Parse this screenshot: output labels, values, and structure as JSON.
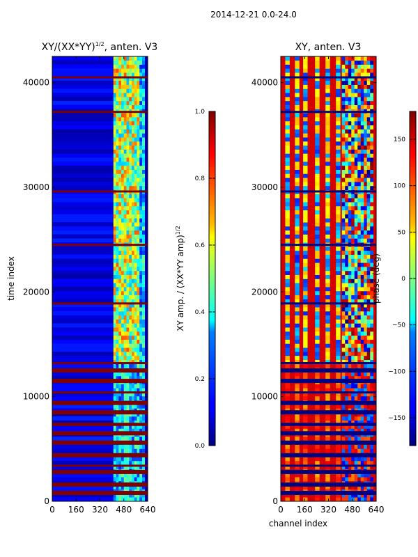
{
  "figure": {
    "suptitle": "2014-12-21 0.0-24.0",
    "xlabel": "channel index"
  },
  "chart_data": [
    {
      "type": "heatmap",
      "title_main": "XY/(XX*YY)",
      "title_sup": "1/2",
      "title_tail": ", anten. V3",
      "xlabel": "",
      "ylabel": "time index",
      "xlim": [
        0,
        640
      ],
      "ylim": [
        0,
        42500
      ],
      "xticks": [
        0,
        160,
        320,
        480,
        640
      ],
      "yticks": [
        0,
        10000,
        20000,
        30000,
        40000
      ],
      "colormap": "jet",
      "colorbar": {
        "label": "XY amp. / (XX*YY amp)",
        "label_sup": "1/2",
        "min": 0.0,
        "max": 1.0,
        "ticks": [
          0.0,
          0.2,
          0.4,
          0.6,
          0.8,
          1.0
        ],
        "tick_labels": [
          "0.0",
          "0.2",
          "0.4",
          "0.6",
          "0.8",
          "1.0"
        ]
      },
      "features": {
        "background_value": 0.05,
        "active_channel_range": [
          410,
          620
        ],
        "active_value_range": [
          0.3,
          0.8
        ],
        "masked_rows_value": 1.0,
        "masked_time_ranges": [
          [
            600,
            1000
          ],
          [
            1400,
            1800
          ],
          [
            2600,
            3000
          ],
          [
            3300,
            3500
          ],
          [
            4200,
            4600
          ],
          [
            5400,
            5800
          ],
          [
            6300,
            6700
          ],
          [
            7200,
            7500
          ],
          [
            8300,
            8700
          ],
          [
            9200,
            9600
          ],
          [
            10300,
            10500
          ],
          [
            11300,
            11700
          ],
          [
            12300,
            12700
          ],
          [
            13100,
            13300
          ],
          [
            18800,
            19000
          ],
          [
            24400,
            24600
          ],
          [
            29500,
            29700
          ],
          [
            37100,
            37300
          ],
          [
            40400,
            40600
          ]
        ]
      }
    },
    {
      "type": "heatmap",
      "title_main": "XY, anten. V3",
      "xlabel": "channel index",
      "ylabel": "",
      "xlim": [
        0,
        640
      ],
      "ylim": [
        0,
        42500
      ],
      "xticks": [
        0,
        160,
        320,
        480,
        640
      ],
      "yticks": [
        0,
        10000,
        20000,
        30000,
        40000
      ],
      "colormap": "jet",
      "colorbar": {
        "label": "phase (deg)",
        "min": -180,
        "max": 180,
        "ticks": [
          -150,
          -100,
          -50,
          0,
          50,
          100,
          150
        ],
        "tick_labels": [
          "−150",
          "−100",
          "−50",
          "0",
          "50",
          "100",
          "150"
        ]
      },
      "features": {
        "background_value_deg": 150,
        "stripe_channels": [
          30,
          95,
          150,
          230,
          300,
          370
        ],
        "active_channel_range": [
          410,
          620
        ],
        "masked_time_ranges": [
          [
            600,
            1000
          ],
          [
            1400,
            1800
          ],
          [
            2600,
            3000
          ],
          [
            3300,
            3500
          ],
          [
            4200,
            4600
          ],
          [
            5400,
            5800
          ],
          [
            6300,
            6700
          ],
          [
            7200,
            7500
          ],
          [
            8300,
            8700
          ],
          [
            9200,
            9600
          ],
          [
            10300,
            10500
          ],
          [
            11300,
            11700
          ],
          [
            12300,
            12700
          ],
          [
            13100,
            13300
          ],
          [
            18800,
            19000
          ],
          [
            24400,
            24600
          ],
          [
            29500,
            29700
          ],
          [
            37100,
            37300
          ],
          [
            40400,
            40600
          ]
        ]
      }
    }
  ],
  "colors": {
    "masked_amp": "#800000",
    "masked_phase": "#000080"
  }
}
